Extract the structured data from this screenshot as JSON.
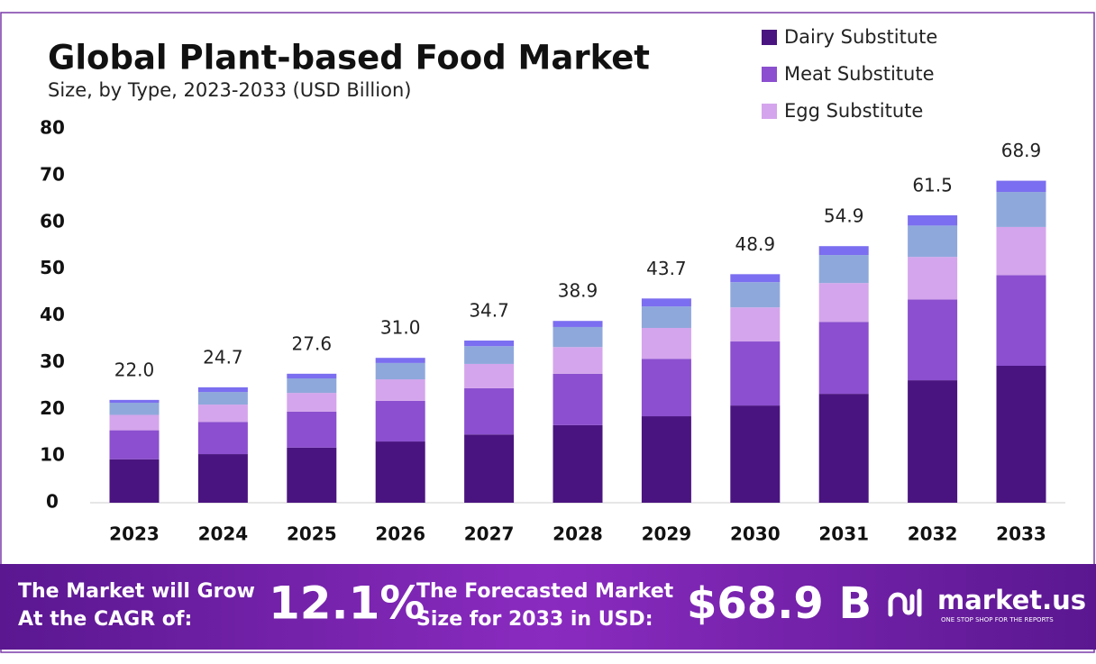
{
  "chart_data": {
    "type": "stacked-bar",
    "title": "Global Plant-based Food Market",
    "subtitle": "Size, by Type, 2023-2033 (USD Billion)",
    "categories": [
      "2023",
      "2024",
      "2025",
      "2026",
      "2027",
      "2028",
      "2029",
      "2030",
      "2031",
      "2032",
      "2033"
    ],
    "series": [
      {
        "name": "Dairy Substitute",
        "color": "#4a1480",
        "values": [
          9.3,
          10.4,
          11.8,
          13.1,
          14.6,
          16.6,
          18.5,
          20.8,
          23.3,
          26.2,
          29.3
        ]
      },
      {
        "name": "Meat Substitute",
        "color": "#8b4fcf",
        "values": [
          6.2,
          6.9,
          7.7,
          8.7,
          9.9,
          11.0,
          12.3,
          13.7,
          15.4,
          17.3,
          19.4
        ]
      },
      {
        "name": "Egg Substitute",
        "color": "#d4a5ec",
        "values": [
          3.3,
          3.7,
          4.0,
          4.6,
          5.2,
          5.7,
          6.6,
          7.3,
          8.3,
          9.1,
          10.3
        ]
      },
      {
        "color": "#8fa8dc",
        "values": [
          2.6,
          2.7,
          3.1,
          3.5,
          3.8,
          4.3,
          4.6,
          5.4,
          6.0,
          6.7,
          7.5
        ]
      },
      {
        "color": "#7b6ef0",
        "values": [
          0.6,
          1.0,
          1.0,
          1.1,
          1.2,
          1.3,
          1.7,
          1.7,
          1.9,
          2.2,
          2.4
        ]
      }
    ],
    "totals": {
      "values": [
        22.0,
        24.7,
        27.6,
        31.0,
        34.7,
        38.9,
        43.7,
        48.9,
        54.9,
        61.5,
        68.9
      ],
      "value_labels": [
        "22.0",
        "24.7",
        "27.6",
        "31.0",
        "34.7",
        "38.9",
        "43.7",
        "48.9",
        "54.9",
        "61.5",
        "68.9"
      ]
    },
    "ylim": [
      0,
      80
    ],
    "yticks": [
      0,
      10,
      20,
      30,
      40,
      50,
      60,
      70,
      80
    ],
    "grid": false,
    "legend": "top-right"
  },
  "footer": {
    "cagr_text": [
      "The Market will Grow",
      "At the CAGR of:"
    ],
    "cagr": "12.1%",
    "forecast_text": [
      "The Forecasted Market",
      "Size for 2033 in USD:"
    ],
    "forecast": "$68.9 B",
    "logo": "market.us",
    "tagline": "ONE STOP SHOP FOR THE REPORTS"
  }
}
